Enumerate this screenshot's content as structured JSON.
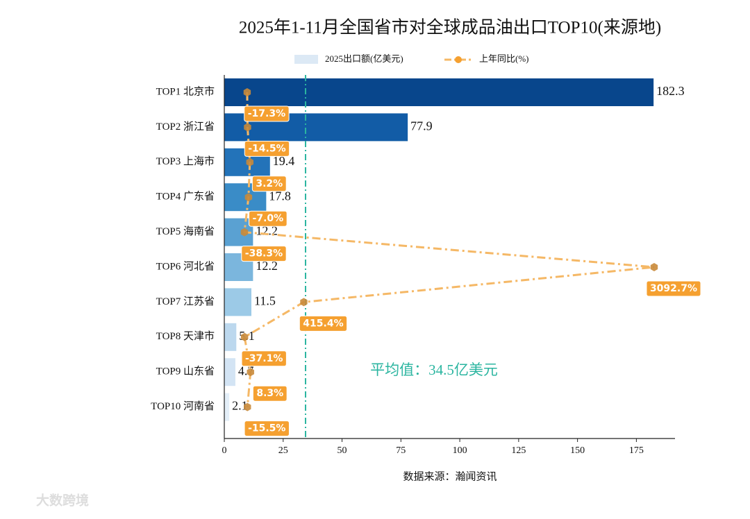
{
  "chart_data": {
    "type": "bar",
    "orientation": "horizontal",
    "title": "2025年1-11月全国省市对全球成品油出口TOP10(来源地)",
    "categories": [
      "TOP1 北京市",
      "TOP2 浙江省",
      "TOP3 上海市",
      "TOP4 广东省",
      "TOP5 海南省",
      "TOP6 河北省",
      "TOP7 江苏省",
      "TOP8 天津市",
      "TOP9 山东省",
      "TOP10 河南省"
    ],
    "series": [
      {
        "name": "2025出口额(亿美元)",
        "colors": [
          "#08468c",
          "#125ca6",
          "#2373b9",
          "#3a8cc7",
          "#5aa1d2",
          "#7bb6dd",
          "#9ccae7",
          "#bcd8ee",
          "#d3e4f4",
          "#e3eef8"
        ],
        "values": [
          182.3,
          77.9,
          19.4,
          17.8,
          12.2,
          12.2,
          11.5,
          5.1,
          4.7,
          2.1
        ]
      },
      {
        "name": "上年同比(%)",
        "type": "line",
        "axis": "x2",
        "color": "#f5a030",
        "values": [
          -17.3,
          -14.5,
          3.2,
          -7.0,
          -38.3,
          3092.7,
          415.4,
          -37.1,
          8.3,
          -15.5
        ],
        "value_labels": [
          "-17.3%",
          "-14.5%",
          "3.2%",
          "-7.0%",
          "-38.3%",
          "3092.7%",
          "415.4%",
          "-37.1%",
          "8.3%",
          "-15.5%"
        ]
      }
    ],
    "xlim": [
      0,
      191.4
    ],
    "xticks": [
      0,
      25,
      50,
      75,
      100,
      125,
      150,
      175
    ],
    "x2lim": [
      -192,
      3252
    ],
    "average": 34.5,
    "average_label": "平均值：34.5亿美元",
    "xlabel": "数据来源：瀚闻资讯",
    "legend": "top",
    "watermark": "大数跨境"
  }
}
